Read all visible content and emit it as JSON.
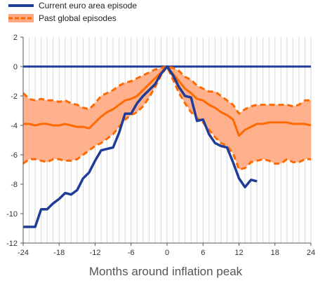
{
  "chart_data": {
    "type": "line",
    "title": "",
    "xlabel": "Months around inflation peak",
    "ylabel": "",
    "xlim": [
      -24,
      24
    ],
    "ylim": [
      -12,
      2
    ],
    "xticks": [
      -24,
      -18,
      -12,
      -6,
      0,
      6,
      12,
      18,
      24
    ],
    "yticks": [
      2,
      0,
      -2,
      -4,
      -6,
      -8,
      -10,
      -12
    ],
    "grid": "vertical-monthly",
    "legend": "top-left",
    "series": [
      {
        "name": "Current euro area episode",
        "color": "#1f3c99",
        "x": [
          -24,
          -23,
          -22,
          -21,
          -20,
          -19,
          -18,
          -17,
          -16,
          -15,
          -14,
          -13,
          -12,
          -11,
          -10,
          -9,
          -8,
          -7,
          -6,
          -5,
          -4,
          -3,
          -2,
          -1,
          0,
          1,
          2,
          3,
          4,
          5,
          6,
          7,
          8,
          9,
          10,
          11,
          12,
          13,
          14,
          15
        ],
        "values": [
          -10.9,
          -10.9,
          -10.9,
          -9.7,
          -9.7,
          -9.3,
          -9.0,
          -8.6,
          -8.7,
          -8.4,
          -7.6,
          -7.2,
          -6.4,
          -5.7,
          -5.6,
          -5.5,
          -4.5,
          -3.2,
          -3.2,
          -2.5,
          -2.0,
          -1.6,
          -1.2,
          -0.5,
          0.0,
          -0.6,
          -1.4,
          -2.0,
          -2.1,
          -3.7,
          -3.6,
          -4.6,
          -5.2,
          -5.4,
          -5.5,
          -6.5,
          -7.6,
          -8.2,
          -7.7,
          -7.8
        ]
      },
      {
        "name": "",
        "color": "#ff6a00",
        "role": "median",
        "x": [
          -24,
          -23,
          -22,
          -21,
          -20,
          -19,
          -18,
          -17,
          -16,
          -15,
          -14,
          -13,
          -12,
          -11,
          -10,
          -9,
          -8,
          -7,
          -6,
          -5,
          -4,
          -3,
          -2,
          -1,
          0,
          1,
          2,
          3,
          4,
          5,
          6,
          7,
          8,
          9,
          10,
          11,
          12,
          13,
          14,
          15,
          16,
          17,
          18,
          19,
          20,
          21,
          22,
          23,
          24
        ],
        "values": [
          -3.9,
          -3.9,
          -4.0,
          -3.9,
          -3.9,
          -4.0,
          -4.0,
          -3.9,
          -4.0,
          -4.1,
          -4.1,
          -4.2,
          -3.8,
          -3.4,
          -3.1,
          -2.9,
          -2.6,
          -2.3,
          -2.2,
          -2.0,
          -1.6,
          -1.2,
          -0.8,
          -0.4,
          0.0,
          -0.5,
          -1.0,
          -1.5,
          -1.8,
          -2.2,
          -2.3,
          -2.6,
          -2.8,
          -3.1,
          -3.3,
          -3.6,
          -4.7,
          -4.3,
          -4.1,
          -3.9,
          -3.9,
          -3.8,
          -3.8,
          -3.8,
          -3.8,
          -3.9,
          -3.9,
          -3.9,
          -4.0
        ]
      },
      {
        "name": "",
        "color": "#ff6a00",
        "role": "upper-bound",
        "x": [
          -24,
          -23,
          -22,
          -21,
          -20,
          -19,
          -18,
          -17,
          -16,
          -15,
          -14,
          -13,
          -12,
          -11,
          -10,
          -9,
          -8,
          -7,
          -6,
          -5,
          -4,
          -3,
          -2,
          -1,
          0,
          1,
          2,
          3,
          4,
          5,
          6,
          7,
          8,
          9,
          10,
          11,
          12,
          13,
          14,
          15,
          16,
          17,
          18,
          19,
          20,
          21,
          22,
          23,
          24
        ],
        "values": [
          -1.8,
          -2.2,
          -2.3,
          -2.2,
          -2.3,
          -2.3,
          -2.4,
          -2.3,
          -2.5,
          -2.6,
          -2.8,
          -2.9,
          -2.5,
          -2.0,
          -1.8,
          -1.6,
          -1.3,
          -1.1,
          -1.0,
          -0.8,
          -0.6,
          -0.4,
          -0.2,
          -0.1,
          0.0,
          -0.1,
          -0.3,
          -0.7,
          -0.9,
          -1.3,
          -1.5,
          -1.7,
          -1.7,
          -2.0,
          -2.3,
          -2.6,
          -3.2,
          -2.9,
          -2.7,
          -2.6,
          -2.6,
          -2.6,
          -2.6,
          -2.6,
          -2.6,
          -2.7,
          -2.6,
          -2.3,
          -2.3
        ]
      },
      {
        "name": "",
        "color": "#ff6a00",
        "role": "lower-bound",
        "x": [
          -24,
          -23,
          -22,
          -21,
          -20,
          -19,
          -18,
          -17,
          -16,
          -15,
          -14,
          -13,
          -12,
          -11,
          -10,
          -9,
          -8,
          -7,
          -6,
          -5,
          -4,
          -3,
          -2,
          -1,
          0,
          1,
          2,
          3,
          4,
          5,
          6,
          7,
          8,
          9,
          10,
          11,
          12,
          13,
          14,
          15,
          16,
          17,
          18,
          19,
          20,
          21,
          22,
          23,
          24
        ],
        "values": [
          -6.6,
          -6.3,
          -6.3,
          -6.4,
          -6.5,
          -6.3,
          -6.3,
          -6.4,
          -6.4,
          -6.3,
          -6.0,
          -5.7,
          -5.4,
          -5.2,
          -4.9,
          -4.6,
          -4.1,
          -3.6,
          -3.3,
          -3.1,
          -2.7,
          -2.1,
          -1.4,
          -0.6,
          0.0,
          -0.9,
          -1.8,
          -2.5,
          -3.1,
          -3.5,
          -3.8,
          -4.3,
          -4.8,
          -5.2,
          -5.4,
          -5.9,
          -7.0,
          -6.9,
          -6.5,
          -6.4,
          -6.3,
          -6.4,
          -6.6,
          -6.6,
          -6.3,
          -6.5,
          -6.5,
          -6.3,
          -6.3
        ]
      }
    ],
    "legend_items": [
      {
        "label": "Current euro area episode",
        "color": "#1f3c99",
        "kind": "line"
      },
      {
        "label": "Past global episodes",
        "color": "#ff6a00",
        "fill": "#ffa882",
        "kind": "band"
      }
    ]
  }
}
